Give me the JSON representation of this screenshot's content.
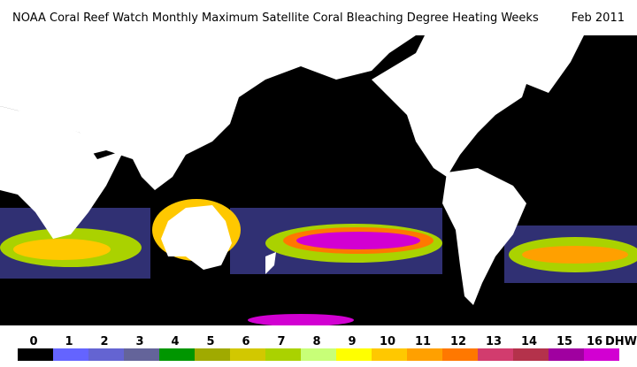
{
  "header": {
    "title": "NOAA Coral Reef Watch Monthly Maximum Satellite Coral Bleaching Degree Heating Weeks",
    "date": "Feb 2011"
  },
  "legend": {
    "labels": [
      "0",
      "1",
      "2",
      "3",
      "4",
      "5",
      "6",
      "7",
      "8",
      "9",
      "10",
      "11",
      "12",
      "13",
      "14",
      "15",
      "16"
    ],
    "colors": [
      "#000000",
      "#6464ff",
      "#6464d2",
      "#64649a",
      "#009600",
      "#a0aa00",
      "#d2c800",
      "#aad200",
      "#c8ff78",
      "#ffff00",
      "#ffc800",
      "#ffa000",
      "#ff7800",
      "#d23c6e",
      "#b4324b",
      "#a000a0",
      "#d200d2"
    ],
    "unit": "DHW"
  }
}
